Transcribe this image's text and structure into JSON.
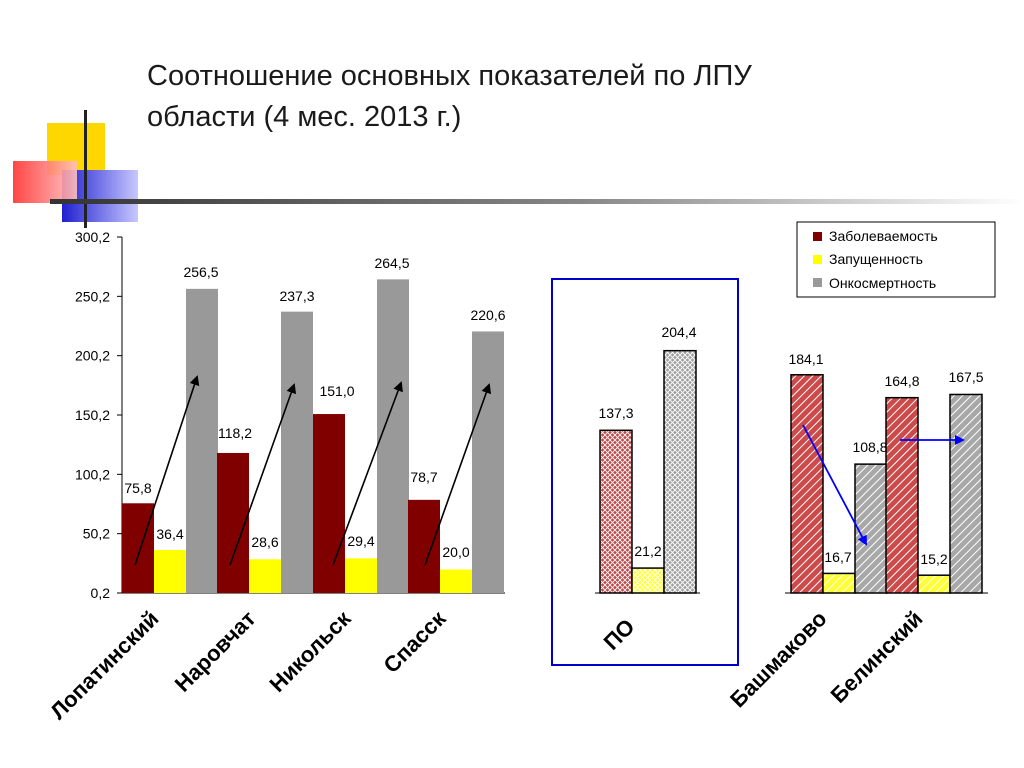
{
  "slide": {
    "title_line1": "Соотношение основных показателей по ЛПУ",
    "title_line2": "области (4 мес. 2013 г.)"
  },
  "colors": {
    "morbidity": "#800000",
    "neglect": "#ffff00",
    "onco_mortality": "#999999",
    "po_frame": "#0000cc",
    "arrow_black": "#000000",
    "arrow_blue": "#0000ff"
  },
  "chart_data": {
    "type": "bar",
    "series": [
      {
        "name": "Заболеваемость",
        "values": [
          75.8,
          118.2,
          151.0,
          78.7,
          137.3,
          184.1,
          164.8
        ],
        "labels": [
          "75,8",
          "118,2",
          "151,0",
          "78,7",
          "137,3",
          "184,1",
          "164,8"
        ]
      },
      {
        "name": "Запущенность",
        "values": [
          36.4,
          28.6,
          29.4,
          20.0,
          21.2,
          16.7,
          15.2
        ],
        "labels": [
          "36,4",
          "28,6",
          "29,4",
          "20,0",
          "21,2",
          "16,7",
          "15,2"
        ]
      },
      {
        "name": "Онкосмертность",
        "values": [
          256.5,
          237.3,
          264.5,
          220.6,
          204.4,
          108.8,
          167.5
        ],
        "labels": [
          "256,5",
          "237,3",
          "264,5",
          "220,6",
          "204,4",
          "108,8",
          "167,5"
        ]
      }
    ],
    "categories": [
      "Лопатинский",
      "Наровчат",
      "Никольск",
      "Спасск",
      "ПО",
      "Башмаково",
      "Белинский"
    ],
    "ylim": [
      0.2,
      300.2
    ],
    "yticks": [
      "0,2",
      "50,2",
      "100,2",
      "150,2",
      "200,2",
      "250,2",
      "300,2"
    ],
    "ytick_values": [
      0.2,
      50.2,
      100.2,
      150.2,
      200.2,
      250.2,
      300.2
    ],
    "legend_position": "top-right",
    "grid": false
  }
}
